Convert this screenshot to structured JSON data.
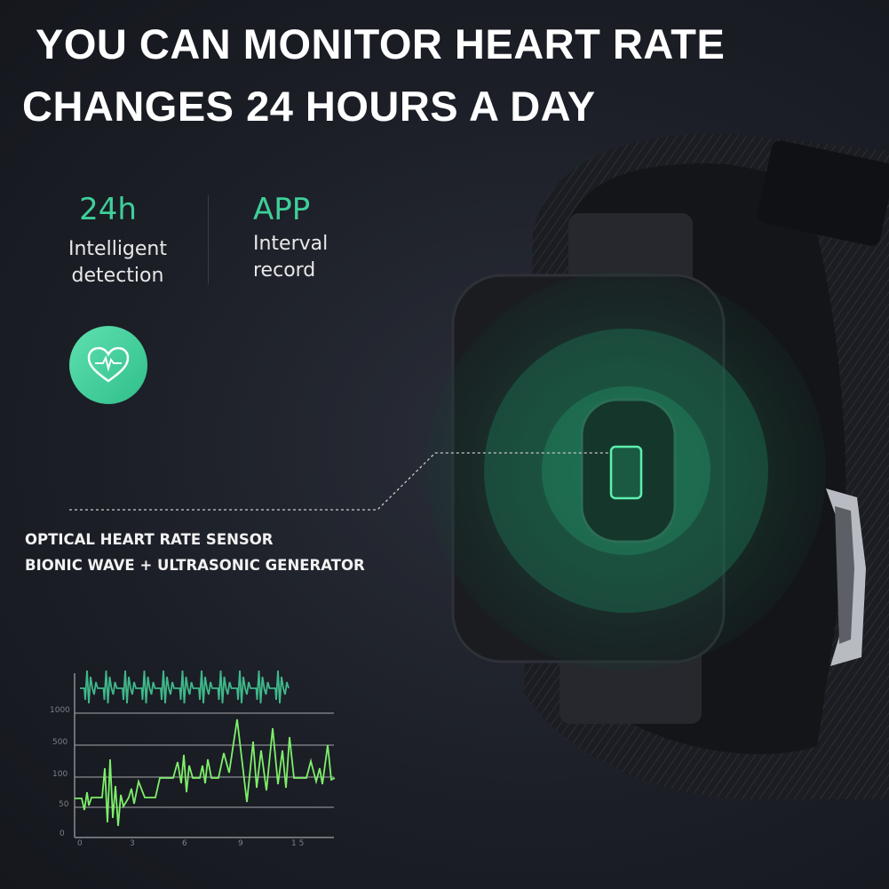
{
  "headline": {
    "line1": "YOU CAN MONITOR HEART RATE",
    "line2": "CHANGES 24 HOURS A DAY"
  },
  "features": [
    {
      "value": "24h",
      "label_line1": "Intelligent",
      "label_line2": "detection"
    },
    {
      "value": "APP",
      "label_line1": "Interval",
      "label_line2": "record"
    }
  ],
  "heart_badge": {
    "icon": "heart-pulse-icon",
    "color": "#3ecf9b"
  },
  "sensor_callout": {
    "line1": "OPTICAL HEART RATE SENSOR",
    "line2": "BIONIC WAVE + ULTRASONIC GENERATOR"
  },
  "chart": {
    "y_ticks": [
      "1000",
      "500",
      "100",
      "50",
      "0"
    ],
    "x_ticks": [
      "0",
      "3",
      "6",
      "9",
      "1 5"
    ]
  },
  "colors": {
    "accent_green": "#3fcf9a",
    "wave_green": "#7ef06a",
    "background": "#1d2028"
  }
}
